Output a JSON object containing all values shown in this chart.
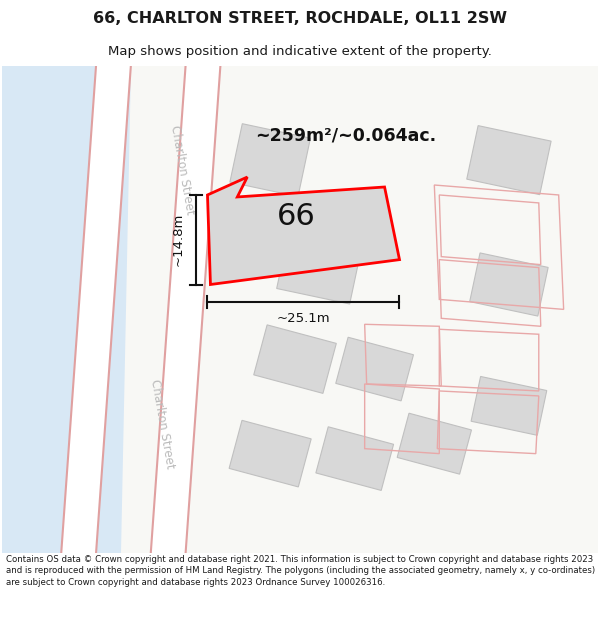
{
  "title": "66, CHARLTON STREET, ROCHDALE, OL11 2SW",
  "subtitle": "Map shows position and indicative extent of the property.",
  "footer": "Contains OS data © Crown copyright and database right 2021. This information is subject to Crown copyright and database rights 2023 and is reproduced with the permission of HM Land Registry. The polygons (including the associated geometry, namely x, y co-ordinates) are subject to Crown copyright and database rights 2023 Ordnance Survey 100026316.",
  "bg_color": "#ffffff",
  "map_bg_light": "#dce8f5",
  "map_bg_white": "#f8f8f8",
  "road_fill": "#ffffff",
  "road_edge_color": "#e0a0a0",
  "building_fill": "#d8d8d8",
  "building_edge": "#c0c0c0",
  "property_fill": "#d8d8d8",
  "property_outline": "#ff0000",
  "property_label": "66",
  "area_label": "~259m²/~0.064ac.",
  "dim_h_label": "~14.8m",
  "dim_w_label": "~25.1m",
  "street_label": "Charlton Street",
  "street_label_color": "#bbbbbb",
  "dim_color": "#111111",
  "label_color": "#111111"
}
